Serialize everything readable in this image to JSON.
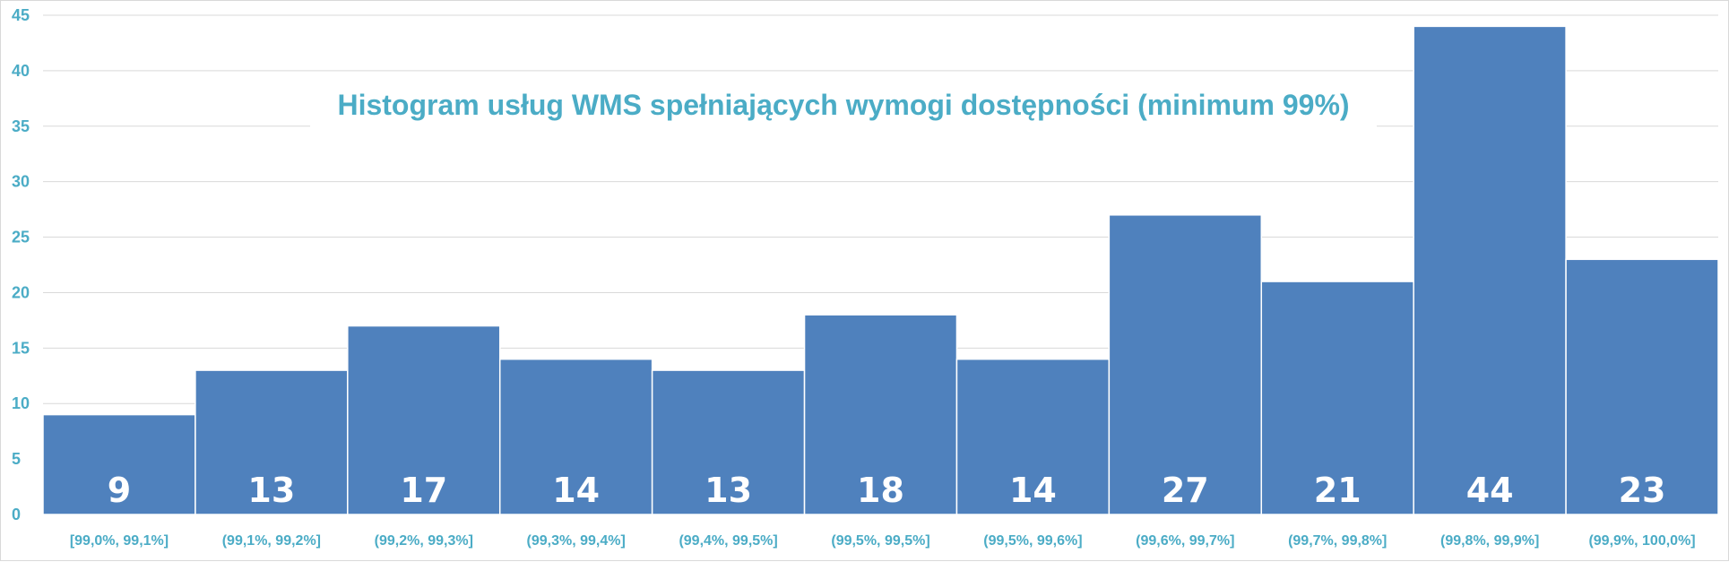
{
  "chart_data": {
    "type": "bar",
    "title": "Histogram usług WMS spełniających wymogi dostępności (minimum 99%)",
    "xlabel": "",
    "ylabel": "",
    "ylim": [
      0,
      45
    ],
    "yticks": [
      0,
      5,
      10,
      15,
      20,
      25,
      30,
      35,
      40,
      45
    ],
    "grid": true,
    "legend": "none",
    "categories": [
      "[99,0%, 99,1%]",
      "(99,1%, 99,2%]",
      "(99,2%, 99,3%]",
      "(99,3%, 99,4%]",
      "(99,4%, 99,5%]",
      "(99,5%, 99,5%]",
      "(99,5%, 99,6%]",
      "(99,6%, 99,7%]",
      "(99,7%, 99,8%]",
      "(99,8%, 99,9%]",
      "(99,9%, 100,0%]"
    ],
    "values": [
      9,
      13,
      17,
      14,
      13,
      18,
      14,
      27,
      21,
      44,
      23
    ],
    "colors": {
      "bar": "#4f81bd",
      "text": "#4bacc6",
      "data_label": "#ffffff",
      "grid": "#d9d9d9"
    }
  }
}
